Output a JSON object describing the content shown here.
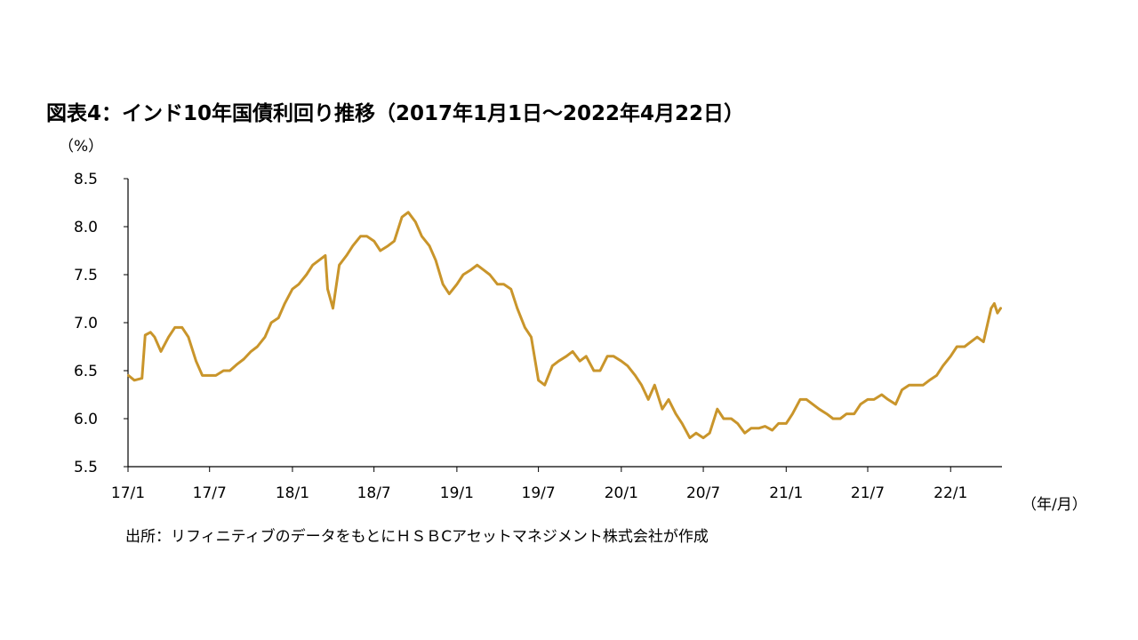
{
  "title": "図表4：インド10年国債利回り推移（2017年1月1日～2022年4月22日）",
  "y_unit": "（%）",
  "x_unit": "（年/月）",
  "source_note": "出所：リフィニティブのデータをもとにＨＳＢCアセットマネジメント株式会社が作成",
  "colors": {
    "line": "#C9952B",
    "axis": "#000000"
  },
  "chart_data": {
    "type": "line",
    "title": "図表4：インド10年国債利回り推移（2017年1月1日～2022年4月22日）",
    "xlabel": "（年/月）",
    "ylabel": "（%）",
    "ylim": [
      5.5,
      8.5
    ],
    "yticks": [
      "8.5",
      "8.0",
      "7.5",
      "7.0",
      "6.5",
      "6.0",
      "5.5"
    ],
    "xticks": [
      "17/1",
      "17/7",
      "18/1",
      "18/7",
      "19/1",
      "19/7",
      "20/1",
      "20/7",
      "21/1",
      "21/7",
      "22/1"
    ],
    "grid": false,
    "series": [
      {
        "x": [
          "2017-01-02",
          "2017-01-15",
          "2017-02-01",
          "2017-02-08",
          "2017-02-20",
          "2017-03-01",
          "2017-03-15",
          "2017-04-01",
          "2017-04-15",
          "2017-05-01",
          "2017-05-15",
          "2017-06-01",
          "2017-06-15",
          "2017-07-01",
          "2017-07-15",
          "2017-08-01",
          "2017-08-15",
          "2017-09-01",
          "2017-09-15",
          "2017-10-01",
          "2017-10-15",
          "2017-11-01",
          "2017-11-15",
          "2017-12-01",
          "2017-12-15",
          "2018-01-01",
          "2018-01-15",
          "2018-02-01",
          "2018-02-15",
          "2018-03-01",
          "2018-03-15",
          "2018-03-20",
          "2018-04-01",
          "2018-04-15",
          "2018-05-01",
          "2018-05-15",
          "2018-06-01",
          "2018-06-15",
          "2018-07-01",
          "2018-07-15",
          "2018-08-01",
          "2018-08-15",
          "2018-09-01",
          "2018-09-15",
          "2018-10-01",
          "2018-10-15",
          "2018-11-01",
          "2018-11-15",
          "2018-12-01",
          "2018-12-15",
          "2019-01-01",
          "2019-01-15",
          "2019-02-01",
          "2019-02-15",
          "2019-03-01",
          "2019-03-15",
          "2019-04-01",
          "2019-04-15",
          "2019-05-01",
          "2019-05-15",
          "2019-06-01",
          "2019-06-15",
          "2019-07-01",
          "2019-07-15",
          "2019-08-01",
          "2019-08-15",
          "2019-09-01",
          "2019-09-15",
          "2019-10-01",
          "2019-10-15",
          "2019-11-01",
          "2019-11-15",
          "2019-12-01",
          "2019-12-15",
          "2020-01-01",
          "2020-01-15",
          "2020-02-01",
          "2020-02-15",
          "2020-03-01",
          "2020-03-15",
          "2020-04-01",
          "2020-04-15",
          "2020-05-01",
          "2020-05-15",
          "2020-06-01",
          "2020-06-15",
          "2020-07-01",
          "2020-07-15",
          "2020-08-01",
          "2020-08-15",
          "2020-09-01",
          "2020-09-15",
          "2020-10-01",
          "2020-10-15",
          "2020-11-01",
          "2020-11-15",
          "2020-12-01",
          "2020-12-15",
          "2021-01-01",
          "2021-01-15",
          "2021-02-01",
          "2021-02-15",
          "2021-03-01",
          "2021-03-15",
          "2021-04-01",
          "2021-04-15",
          "2021-05-01",
          "2021-05-15",
          "2021-06-01",
          "2021-06-15",
          "2021-07-01",
          "2021-07-15",
          "2021-08-01",
          "2021-08-15",
          "2021-09-01",
          "2021-09-15",
          "2021-10-01",
          "2021-10-15",
          "2021-11-01",
          "2021-11-15",
          "2021-12-01",
          "2021-12-15",
          "2022-01-01",
          "2022-01-15",
          "2022-02-01",
          "2022-02-15",
          "2022-03-01",
          "2022-03-15",
          "2022-04-01",
          "2022-04-08",
          "2022-04-15",
          "2022-04-22"
        ],
        "values": [
          6.45,
          6.4,
          6.42,
          6.87,
          6.9,
          6.85,
          6.7,
          6.85,
          6.95,
          6.95,
          6.85,
          6.6,
          6.45,
          6.45,
          6.45,
          6.5,
          6.5,
          6.57,
          6.62,
          6.7,
          6.75,
          6.85,
          7.0,
          7.05,
          7.2,
          7.35,
          7.4,
          7.5,
          7.6,
          7.65,
          7.7,
          7.35,
          7.15,
          7.6,
          7.7,
          7.8,
          7.9,
          7.9,
          7.85,
          7.75,
          7.8,
          7.85,
          8.1,
          8.15,
          8.05,
          7.9,
          7.8,
          7.65,
          7.4,
          7.3,
          7.4,
          7.5,
          7.55,
          7.6,
          7.55,
          7.5,
          7.4,
          7.4,
          7.35,
          7.15,
          6.95,
          6.85,
          6.4,
          6.35,
          6.55,
          6.6,
          6.65,
          6.7,
          6.6,
          6.65,
          6.5,
          6.5,
          6.65,
          6.65,
          6.6,
          6.55,
          6.45,
          6.35,
          6.2,
          6.35,
          6.1,
          6.2,
          6.05,
          5.95,
          5.8,
          5.85,
          5.8,
          5.85,
          6.1,
          6.0,
          6.0,
          5.95,
          5.85,
          5.9,
          5.9,
          5.92,
          5.88,
          5.95,
          5.95,
          6.05,
          6.2,
          6.2,
          6.15,
          6.1,
          6.05,
          6.0,
          6.0,
          6.05,
          6.05,
          6.15,
          6.2,
          6.2,
          6.25,
          6.2,
          6.15,
          6.3,
          6.35,
          6.35,
          6.35,
          6.4,
          6.45,
          6.55,
          6.65,
          6.75,
          6.75,
          6.8,
          6.85,
          6.8,
          7.15,
          7.2,
          7.1,
          7.15
        ]
      }
    ]
  }
}
